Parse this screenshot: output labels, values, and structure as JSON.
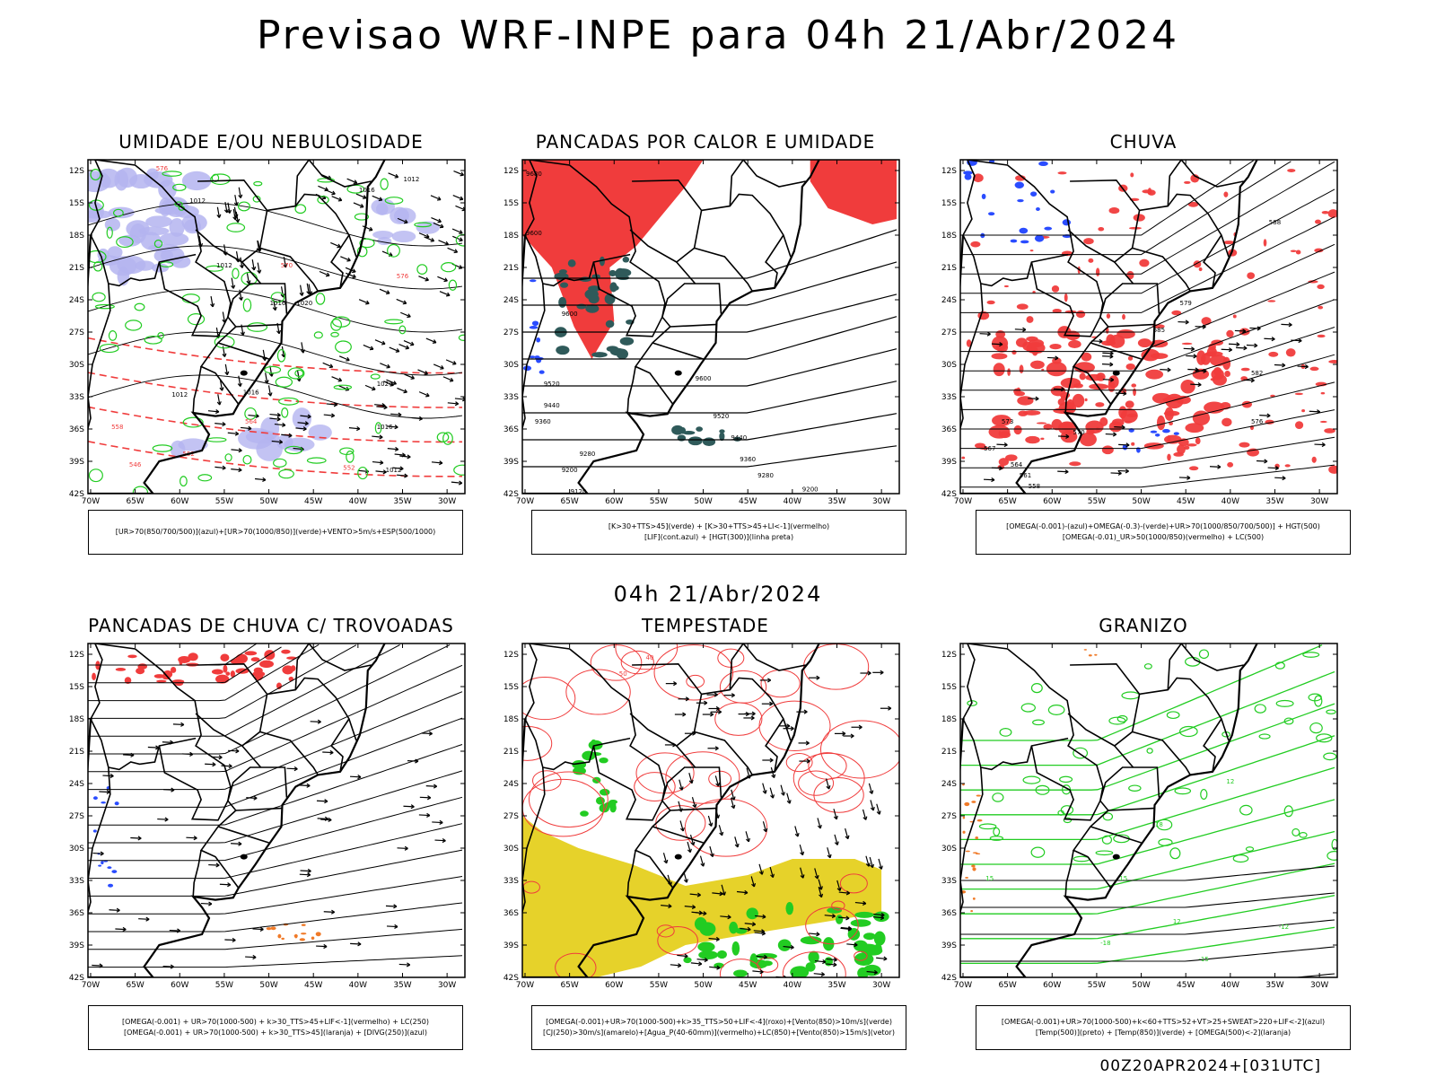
{
  "header": {
    "title": "Previsao WRF-INPE  para 04h 21/Abr/2024",
    "mid_title": "04h 21/Abr/2024",
    "footer": "00Z20APR2024+[031UTC]"
  },
  "axes": {
    "lat_ticks": [
      "12S",
      "15S",
      "18S",
      "21S",
      "24S",
      "27S",
      "30S",
      "33S",
      "36S",
      "39S",
      "42S"
    ],
    "lon_ticks": [
      "70W",
      "65W",
      "60W",
      "55W",
      "50W",
      "45W",
      "40W",
      "35W",
      "30W"
    ]
  },
  "colors": {
    "red": "#f03c3c",
    "green": "#22cc22",
    "blue": "#2a4cff",
    "lavender": "#b4b4f0",
    "yellow": "#e6d22a",
    "orange": "#f07a28",
    "darkteal": "#2f5a5a",
    "black": "#000000"
  },
  "chart_data": [
    {
      "type": "heatmap",
      "title": "UMIDADE E/OU NEBULOSIDADE",
      "legend": [
        "[UR>70(850/700/500)](azul)+[UR>70(1000/850)](verde)+VENTO>5m/s+ESP(500/1000)"
      ],
      "contour_labels": [
        "1012",
        "1016",
        "1020",
        "1024",
        "1028",
        "564",
        "570",
        "576",
        "582",
        "558",
        "552",
        "546"
      ]
    },
    {
      "type": "heatmap",
      "title": "PANCADAS POR CALOR E UMIDADE",
      "legend": [
        "[K>30+TTS>45](verde) + [K>30+TTS>45+LI<-1](vermelho)",
        "[LIF](cont.azul) + [HGT(300)](linha preta)"
      ],
      "contour_labels": [
        "9680",
        "9600",
        "9520",
        "9440",
        "9360",
        "9280",
        "9200",
        "9120"
      ]
    },
    {
      "type": "heatmap",
      "title": "CHUVA",
      "legend": [
        "[OMEGA(-0.001)-(azul)+OMEGA(-0.3)-(verde)+UR>70(1000/850/700/500)] + HGT(500)",
        "[OMEGA(-0.01)_UR>50(1000/850)(vermelho) + LC(500)"
      ],
      "contour_labels": [
        "588",
        "585",
        "582",
        "579",
        "576",
        "573",
        "570",
        "567",
        "564",
        "561",
        "558"
      ]
    },
    {
      "type": "heatmap",
      "title": "PANCADAS DE CHUVA C/ TROVOADAS",
      "legend": [
        "[OMEGA(-0.001) + UR>70(1000-500) + k>30_TTS>45+LIF<-1](vermelho) + LC(250)",
        "[OMEGA(-0.001) + UR>70(1000-500) + k>30_TTS>45](laranja) + [DIVG(250)](azul)"
      ],
      "contour_labels": []
    },
    {
      "type": "heatmap",
      "title": "TEMPESTADE",
      "legend": [
        "[OMEGA(-0.001)+UR>70(1000-500)+k>35_TTS>50+LIF<-4](roxo)+[Vento(850)>10m/s](verde)",
        "[CJ(250)>30m/s](amarelo)+[Agua_P(40-60mm)](vermelho)+LC(850)+[Vento(850)>15m/s](vetor)"
      ],
      "contour_labels": [
        "50",
        "40"
      ]
    },
    {
      "type": "heatmap",
      "title": "GRANIZO",
      "legend": [
        "[OMEGA(-0.001)+UR>70(1000-500)+k<60+TTS>52+VT>25+SWEAT>220+LIF<-2](azul)",
        "[Temp(500)](preto) + [Temp(850)](verde) + [OMEGA(500)<-2](laranja)"
      ],
      "contour_labels": [
        "18",
        "15",
        "12",
        "-18",
        "-15",
        "-12"
      ]
    }
  ]
}
